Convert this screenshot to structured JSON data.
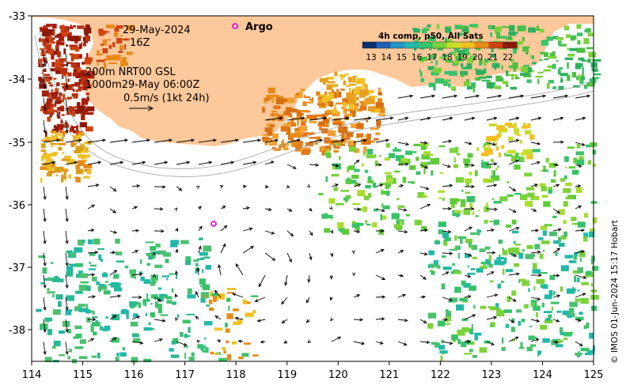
{
  "header": {
    "date": "29-May-2024",
    "time": "16Z",
    "argo_label": "Argo"
  },
  "annotations": {
    "line1": "200m  NRT00 GSL",
    "line2": "1000m29-May 06:00Z",
    "line3": "0.5m/s (1kt 24h)"
  },
  "colorbar": {
    "title": "4h comp, p50, All Sats",
    "ticks": [
      "13",
      "14",
      "15",
      "16",
      "17",
      "18",
      "19",
      "20",
      "21",
      "22"
    ],
    "colors": [
      "#08306b",
      "#1f5fb4",
      "#2196c8",
      "#22b8a8",
      "#38c26a",
      "#7bd23a",
      "#c8dc2a",
      "#f0c020",
      "#e88a18",
      "#d04410",
      "#8b1a0a"
    ]
  },
  "axes": {
    "x_ticks": [
      "114",
      "115",
      "116",
      "117",
      "118",
      "119",
      "120",
      "121",
      "122",
      "123",
      "124",
      "125"
    ],
    "y_ticks": [
      "-33",
      "-34",
      "-35",
      "-36",
      "-37",
      "-38"
    ]
  },
  "credit": "© IMOS 01-Jun-2024 15:17 Hobart",
  "colors": {
    "land": "#fdc89a",
    "ocean": "#ffffff",
    "argo_marker": "#e000e0"
  }
}
